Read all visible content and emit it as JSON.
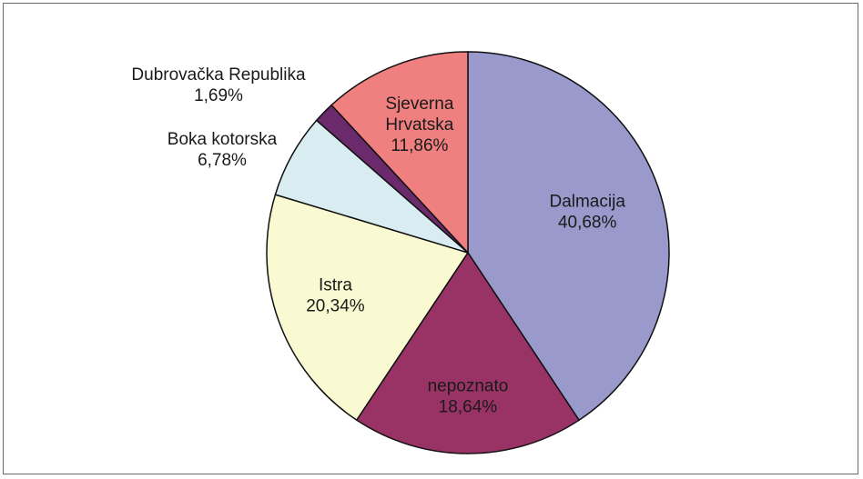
{
  "chart_data": {
    "type": "pie",
    "title": "",
    "start_angle_deg": 0,
    "direction": "clockwise",
    "slices": [
      {
        "name": "Dalmacija",
        "value": 40.68,
        "label": "40,68%",
        "color": "#9999cc"
      },
      {
        "name": "nepoznato",
        "value": 18.64,
        "label": "18,64%",
        "color": "#993366"
      },
      {
        "name": "Istra",
        "value": 20.34,
        "label": "20,34%",
        "color": "#fafad2"
      },
      {
        "name": "Boka kotorska",
        "value": 6.78,
        "label": "6,78%",
        "color": "#d8ecf2"
      },
      {
        "name": "Dubrovačka Republika",
        "value": 1.69,
        "label": "1,69%",
        "color": "#6b2a6b"
      },
      {
        "name": "Sjeverna Hrvatska",
        "value": 11.86,
        "label": "11,86%",
        "color": "#f08080"
      }
    ]
  }
}
